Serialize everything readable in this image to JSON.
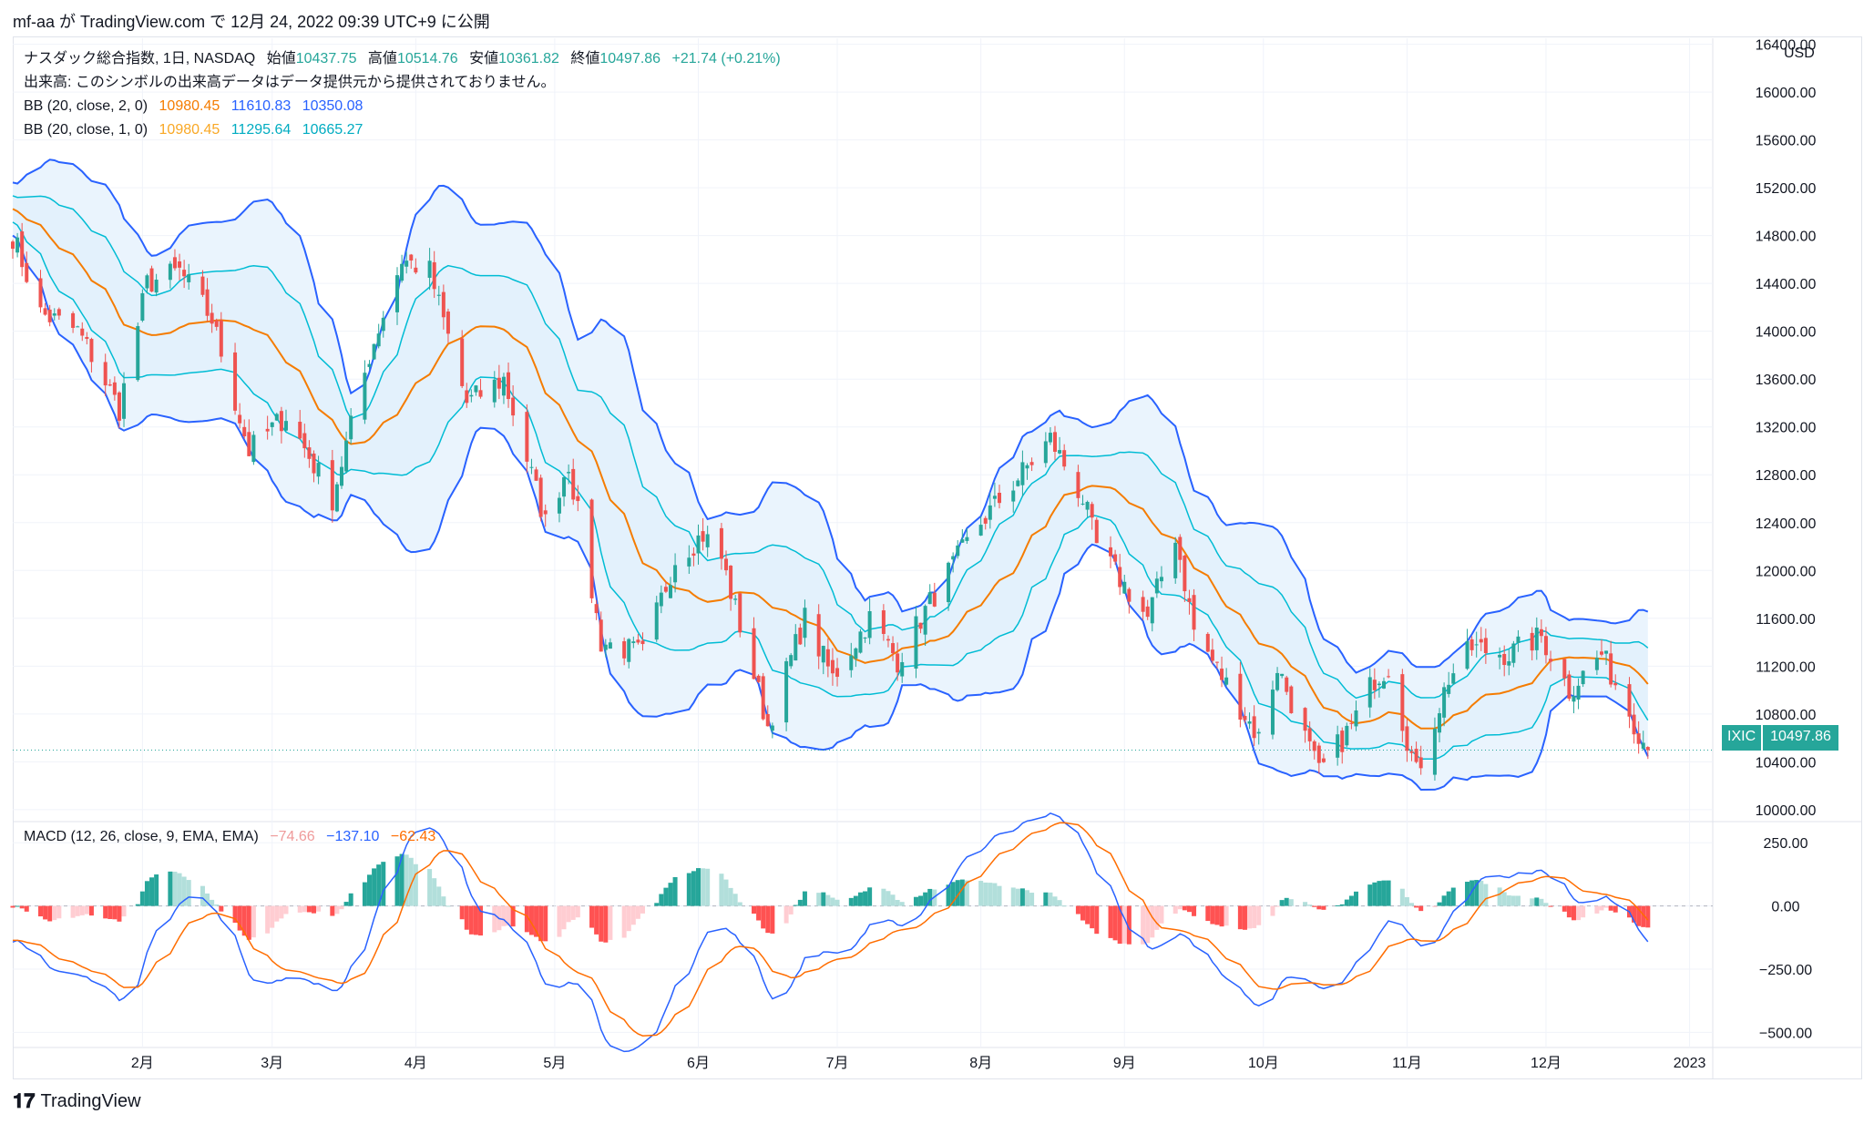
{
  "header": {
    "publish_text": "mf-aa が TradingView.com で 12月 24, 2022 09:39 UTC+9 に公開"
  },
  "legend": {
    "line1": {
      "name": "ナスダック総合指数, 1日, NASDAQ",
      "open_label": "始値",
      "open": "10437.75",
      "high_label": "高値",
      "high": "10514.76",
      "low_label": "安値",
      "low": "10361.82",
      "close_label": "終値",
      "close": "10497.86",
      "change": "+21.74 (+0.21%)"
    },
    "line2": "出来高: このシンボルの出来高データはデータ提供元から提供されておりません。",
    "bb2": {
      "label": "BB (20, close, 2, 0)",
      "basis": "10980.45",
      "upper": "11610.83",
      "lower": "10350.08"
    },
    "bb1": {
      "label": "BB (20, close, 1, 0)",
      "basis": "10980.45",
      "upper": "11295.64",
      "lower": "10665.27"
    }
  },
  "macd_legend": {
    "label": "MACD (12, 26, close, 9, EMA, EMA)",
    "hist": "−74.66",
    "macd": "−137.10",
    "signal": "−62.43"
  },
  "axis": {
    "currency": "USD",
    "price_ticks": [
      "10000.00",
      "10400.00",
      "10800.00",
      "11200.00",
      "11600.00",
      "12000.00",
      "12400.00",
      "12800.00",
      "13200.00",
      "13600.00",
      "14000.00",
      "14400.00",
      "14800.00",
      "15200.00",
      "15600.00",
      "16000.00",
      "16400.00"
    ],
    "macd_ticks": [
      "250.00",
      "0.00",
      "−250.00",
      "−500.00"
    ],
    "months": [
      "2月",
      "3月",
      "4月",
      "5月",
      "6月",
      "7月",
      "8月",
      "9月",
      "10月",
      "11月",
      "12月",
      "2023"
    ]
  },
  "price_tag": {
    "symbol": "IXIC",
    "value": "10497.86"
  },
  "footer": {
    "brand": "TradingView"
  },
  "colors": {
    "up": "#26a69a",
    "down": "#ef5350",
    "basis": "#f57c00",
    "bb2": "#2962ff",
    "bb1": "#00bcd4",
    "bb_fill": "#e3f2fd",
    "macd_line": "#2962ff",
    "signal_line": "#ff6d00",
    "hist_up_strong": "#26a69a",
    "hist_up_weak": "#b2dfdb",
    "hist_down_strong": "#ff5252",
    "hist_down_weak": "#ffcdd2"
  },
  "chart_data": [
    {
      "type": "candlestick",
      "title": "ナスダック総合指数, 1日, NASDAQ",
      "ylim": [
        9900,
        16450
      ],
      "x_range": [
        "2022-01-04",
        "2022-12-23"
      ],
      "pivots": [
        [
          "2022-01-04",
          14800
        ],
        [
          "2022-01-10",
          14150
        ],
        [
          "2022-01-18",
          14000
        ],
        [
          "2022-01-21",
          13800
        ],
        [
          "2022-01-27",
          13350
        ],
        [
          "2022-02-02",
          14400
        ],
        [
          "2022-02-09",
          14500
        ],
        [
          "2022-02-16",
          14100
        ],
        [
          "2022-02-24",
          13000
        ],
        [
          "2022-03-04",
          13300
        ],
        [
          "2022-03-14",
          12600
        ],
        [
          "2022-03-22",
          13800
        ],
        [
          "2022-03-29",
          14600
        ],
        [
          "2022-04-04",
          14500
        ],
        [
          "2022-04-12",
          13400
        ],
        [
          "2022-04-20",
          13600
        ],
        [
          "2022-04-29",
          12400
        ],
        [
          "2022-05-04",
          12900
        ],
        [
          "2022-05-11",
          11400
        ],
        [
          "2022-05-20",
          11300
        ],
        [
          "2022-05-27",
          12100
        ],
        [
          "2022-06-02",
          12300
        ],
        [
          "2022-06-06",
          12100
        ],
        [
          "2022-06-16",
          10700
        ],
        [
          "2022-06-24",
          11600
        ],
        [
          "2022-06-30",
          11100
        ],
        [
          "2022-07-08",
          11600
        ],
        [
          "2022-07-14",
          11250
        ],
        [
          "2022-07-22",
          11800
        ],
        [
          "2022-08-01",
          12400
        ],
        [
          "2022-08-16",
          13100
        ],
        [
          "2022-08-23",
          12600
        ],
        [
          "2022-08-26",
          12200
        ],
        [
          "2022-09-06",
          11600
        ],
        [
          "2022-09-12",
          12300
        ],
        [
          "2022-09-16",
          11500
        ],
        [
          "2022-09-30",
          10600
        ],
        [
          "2022-10-04",
          11200
        ],
        [
          "2022-10-13",
          10300
        ],
        [
          "2022-10-20",
          10700
        ],
        [
          "2022-10-25",
          11100
        ],
        [
          "2022-10-28",
          11200
        ],
        [
          "2022-11-03",
          10300
        ],
        [
          "2022-11-10",
          11100
        ],
        [
          "2022-11-15",
          11350
        ],
        [
          "2022-11-23",
          11300
        ],
        [
          "2022-11-30",
          11450
        ],
        [
          "2022-12-06",
          11000
        ],
        [
          "2022-12-13",
          11300
        ],
        [
          "2022-12-23",
          10497.86
        ]
      ]
    },
    {
      "type": "line",
      "title": "MACD (12, 26, close, 9, EMA, EMA)",
      "ylim": [
        -560,
        330
      ],
      "series": [
        {
          "values_source": "computed from candles"
        }
      ]
    }
  ]
}
